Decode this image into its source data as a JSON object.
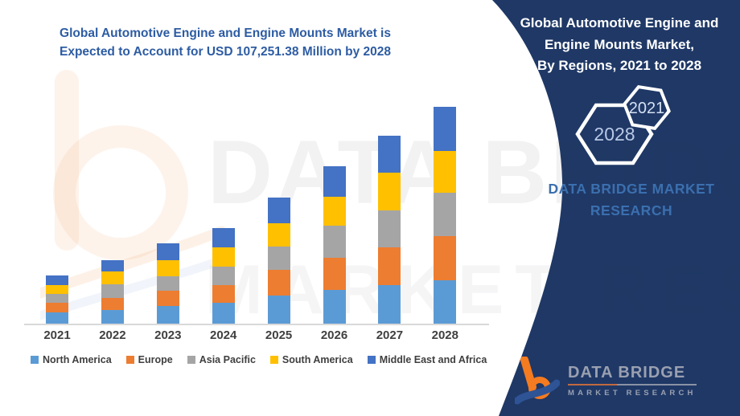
{
  "left_title": {
    "line1": "Global Automotive Engine and Engine Mounts Market is",
    "line2": "Expected to Account for USD 107,251.38 Million by 2028"
  },
  "right_panel": {
    "title_line1": "Global Automotive Engine and",
    "title_line2": "Engine Mounts Market,",
    "title_line3": "By Regions,  2021 to 2028",
    "hexagon_large_year": "2028",
    "hexagon_small_year": "2021",
    "brand_line1": "DATA BRIDGE MARKET",
    "brand_line2": "RESEARCH"
  },
  "footer_logo": {
    "name": "DATA BRIDGE",
    "subtitle": "MARKET RESEARCH"
  },
  "watermark": {
    "line1": "DATA BRIDGE",
    "line2": "MARKET RESEARCH"
  },
  "colors": {
    "navy": "#1F3866",
    "title_blue": "#2D5CA3",
    "brand_blue": "#3B6FAE",
    "hex_text_large": "#B9C9E6",
    "hex_text_small": "#D4E0F2",
    "logo_orange": "#F47B20",
    "logo_swoosh_blue": "#2E5496",
    "axis_line": "#d9d9d9",
    "label_gray": "#404040"
  },
  "chart_data": {
    "type": "bar",
    "stacked": true,
    "title": "Global Automotive Engine and Engine Mounts Market is Expected to Account for USD 107,251.38 Million by 2028",
    "unit": "USD Million",
    "categories": [
      "2021",
      "2022",
      "2023",
      "2024",
      "2025",
      "2026",
      "2027",
      "2028"
    ],
    "series": [
      {
        "name": "North America",
        "color": "#5B9BD5",
        "values": [
          5700,
          6800,
          8600,
          10300,
          13850,
          16500,
          19100,
          21600
        ]
      },
      {
        "name": "Europe",
        "color": "#ED7D31",
        "values": [
          4600,
          6000,
          7650,
          8800,
          12550,
          15850,
          18700,
          21650
        ]
      },
      {
        "name": "Asia Pacific",
        "color": "#A5A5A5",
        "values": [
          4350,
          6800,
          7250,
          9000,
          11850,
          15850,
          18200,
          21500
        ]
      },
      {
        "name": "South America",
        "color": "#FFC000",
        "values": [
          4250,
          6300,
          7900,
          9500,
          11200,
          14500,
          18500,
          20500
        ]
      },
      {
        "name": "Middle East and Africa",
        "color": "#4472C4",
        "values": [
          5000,
          5500,
          8200,
          9600,
          12800,
          14900,
          18200,
          22000
        ]
      }
    ],
    "totals": [
      23900,
      31400,
      39600,
      47200,
      62250,
      77600,
      92700,
      107251.38
    ],
    "xlabel": "",
    "ylabel": "",
    "ylim": [
      0,
      113000
    ],
    "grid": false,
    "legend_position": "bottom"
  }
}
